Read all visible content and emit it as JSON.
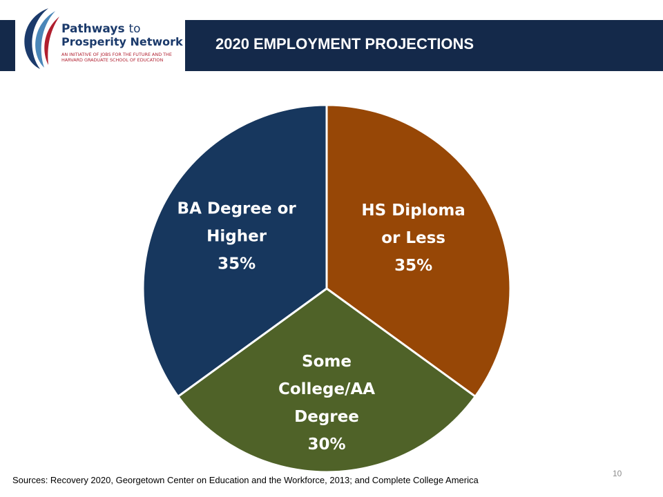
{
  "header": {
    "title": "2020 EMPLOYMENT PROJECTIONS"
  },
  "logo": {
    "line1_main": "Pathways",
    "line1_to": "to",
    "line2": "Prosperity Network",
    "tagline": "AN INITIATIVE OF JOBS FOR THE FUTURE AND THE HARVARD GRADUATE SCHOOL OF EDUCATION"
  },
  "chart_data": {
    "type": "pie",
    "title": "",
    "slices": [
      {
        "label_lines": [
          "HS Diploma",
          "or Less"
        ],
        "value_label": "35%",
        "value": 35,
        "color": "#974706"
      },
      {
        "label_lines": [
          "Some",
          "College/AA",
          "Degree"
        ],
        "value_label": "30%",
        "value": 30,
        "color": "#4f6228"
      },
      {
        "label_lines": [
          "BA Degree or",
          "Higher"
        ],
        "value_label": "35%",
        "value": 35,
        "color": "#17375e"
      }
    ],
    "start": "12 o'clock",
    "direction": "clockwise",
    "legend": "none",
    "label_color": "#ffffff"
  },
  "footer": {
    "source": "Sources: Recovery 2020, Georgetown Center on Education and the Workforce, 2013; and Complete College America",
    "page_number": "10"
  },
  "colors": {
    "header_bg": "#14294a",
    "logo_blue": "#1b3a6b",
    "logo_red": "#b01e2e"
  }
}
